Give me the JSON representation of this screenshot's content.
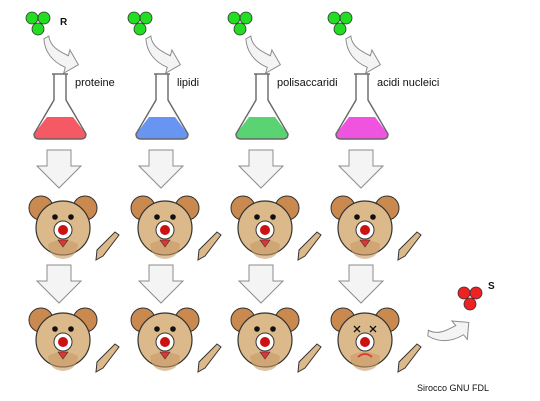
{
  "strain_r_label": "R",
  "strain_s_label": "S",
  "fractions": [
    {
      "label": "proteine",
      "color": "#f44b57"
    },
    {
      "label": "lipidi",
      "color": "#5a8cf0"
    },
    {
      "label": "polisaccaridi",
      "color": "#4ccf66"
    },
    {
      "label": "acidi nucleici",
      "color": "#ee44dd"
    }
  ],
  "credit": "Sirocco GNU FDL",
  "colors": {
    "bacteria_green": "#22dd22",
    "bacteria_red": "#ee2222",
    "mouse_fur": "#dcb98a",
    "mouse_ear": "#c9894f",
    "arrow_fill": "#f4f4f4",
    "arrow_stroke": "#8c8c8c"
  },
  "outcomes": [
    "alive",
    "alive",
    "alive",
    "dead"
  ]
}
